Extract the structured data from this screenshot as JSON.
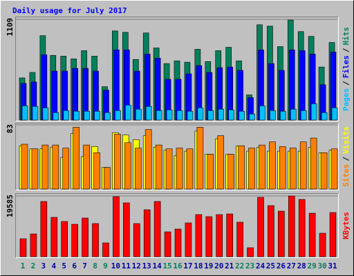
{
  "chart_data": [
    {
      "type": "bar",
      "title": "Daily usage for July 2017",
      "legend_separator": "/",
      "ylim": [
        0,
        1109
      ],
      "yticks": [
        1109
      ],
      "series": [
        {
          "name": "Hits",
          "color": "#00805c",
          "values": [
            464,
            524,
            929,
            712,
            704,
            674,
            764,
            704,
            367,
            981,
            966,
            667,
            959,
            794,
            622,
            652,
            637,
            779,
            644,
            764,
            801,
            652,
            277,
            1049,
            1034,
            809,
            1101,
            974,
            921,
            584,
            854
          ]
        },
        {
          "name": "Files",
          "color": "#0000ff",
          "values": [
            404,
            419,
            719,
            539,
            539,
            569,
            569,
            539,
            330,
            772,
            772,
            539,
            727,
            682,
            449,
            449,
            509,
            599,
            524,
            577,
            584,
            547,
            247,
            772,
            622,
            547,
            772,
            764,
            727,
            389,
            749
          ]
        },
        {
          "name": "Pages",
          "color": "#00c0ff",
          "values": [
            157,
            150,
            135,
            82,
            105,
            97,
            97,
            97,
            82,
            105,
            165,
            120,
            150,
            105,
            112,
            105,
            97,
            135,
            105,
            120,
            112,
            97,
            67,
            157,
            105,
            97,
            120,
            105,
            180,
            82,
            135
          ]
        }
      ]
    },
    {
      "type": "bar",
      "legend_separator": "/",
      "ylim": [
        0,
        83
      ],
      "yticks": [
        83
      ],
      "series": [
        {
          "name": "Visits",
          "color": "#ffff00",
          "values": [
            56,
            52,
            52,
            54,
            41,
            72,
            42,
            55,
            28,
            73,
            70,
            64,
            69,
            54,
            50,
            43,
            49,
            75,
            45,
            65,
            45,
            56,
            49,
            54,
            49,
            49,
            49,
            49,
            54,
            47,
            50
          ]
        },
        {
          "name": "Sites",
          "color": "#ff8000",
          "values": [
            58,
            52,
            57,
            57,
            53,
            80,
            57,
            47,
            28,
            71,
            60,
            53,
            77,
            57,
            52,
            53,
            52,
            80,
            45,
            69,
            45,
            56,
            53,
            57,
            61,
            55,
            53,
            61,
            66,
            47,
            52
          ]
        }
      ]
    },
    {
      "type": "bar",
      "ylim": [
        0,
        19585
      ],
      "yticks": [
        19585
      ],
      "categories": [
        "1",
        "2",
        "3",
        "4",
        "5",
        "6",
        "7",
        "8",
        "9",
        "10",
        "11",
        "12",
        "13",
        "14",
        "15",
        "16",
        "17",
        "18",
        "19",
        "20",
        "21",
        "22",
        "23",
        "24",
        "25",
        "26",
        "27",
        "28",
        "29",
        "30",
        "31"
      ],
      "category_colors": [
        "#00805c",
        "#00805c",
        "#0000a0",
        "#0000a0",
        "#0000a0",
        "#0000a0",
        "#0000a0",
        "#00805c",
        "#00805c",
        "#0000a0",
        "#0000a0",
        "#0000a0",
        "#0000a0",
        "#0000a0",
        "#00805c",
        "#00805c",
        "#0000a0",
        "#0000a0",
        "#0000a0",
        "#0000a0",
        "#0000a0",
        "#00805c",
        "#00805c",
        "#0000a0",
        "#0000a0",
        "#0000a0",
        "#0000a0",
        "#0000a0",
        "#00805c",
        "#00805c",
        "#0000a0"
      ],
      "series": [
        {
          "name": "KBytes",
          "color": "#ff0000",
          "values": [
            5787,
            7345,
            17805,
            12686,
            11350,
            10460,
            12463,
            10683,
            4451,
            19362,
            17359,
            10683,
            15134,
            17805,
            8012,
            8902,
            10905,
            13576,
            12908,
            13576,
            13799,
            11128,
            2893,
            19140,
            16469,
            14689,
            19585,
            18472,
            14021,
            7567,
            14244
          ]
        }
      ]
    }
  ]
}
